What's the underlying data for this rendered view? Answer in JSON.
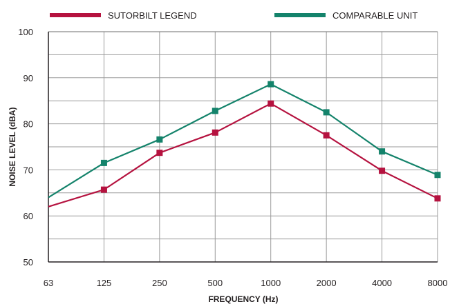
{
  "chart_data": {
    "type": "line",
    "title": "",
    "xlabel": "FREQUENCY (Hz)",
    "ylabel": "NOISE LEVEL (dBA)",
    "categories": [
      "63",
      "125",
      "250",
      "500",
      "1000",
      "2000",
      "4000",
      "8000"
    ],
    "ylim": [
      50,
      100
    ],
    "yticks": [
      50,
      60,
      70,
      80,
      90,
      100
    ],
    "grid": true,
    "legend_position": "top",
    "series": [
      {
        "name": "SUTORBILT LEGEND",
        "color": "#b5123f",
        "values": [
          62,
          65.7,
          73.7,
          78.1,
          84.4,
          77.5,
          69.8,
          63.8
        ],
        "marker_from_index": 1
      },
      {
        "name": "COMPARABLE UNIT",
        "color": "#14836b",
        "values": [
          64,
          71.5,
          76.6,
          82.8,
          88.6,
          82.5,
          74,
          68.9
        ],
        "marker_from_index": 1
      }
    ]
  }
}
